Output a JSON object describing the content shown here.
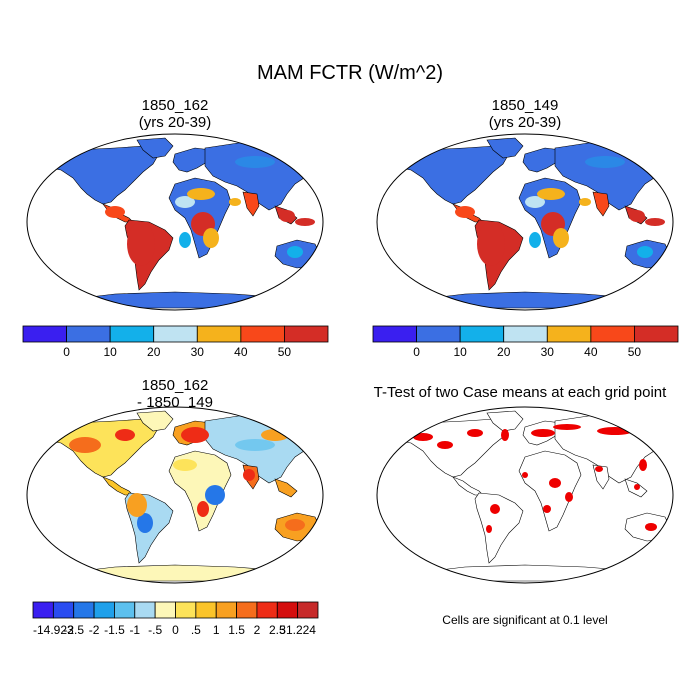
{
  "title": "MAM FCTR (W/m^2)",
  "panels": [
    {
      "id": "case1",
      "title_line1": "1850_162",
      "title_line2": "(yrs 20-39)"
    },
    {
      "id": "case2",
      "title_line1": "1850_149",
      "title_line2": "(yrs 20-39)"
    },
    {
      "id": "diff",
      "title_line1": "1850_162",
      "title_line2": "- 1850_149"
    },
    {
      "id": "ttest",
      "title_line1": "T-Test of two Case means at each grid point",
      "title_line2": ""
    }
  ],
  "colorbar_abs": {
    "colors": [
      "#3a1ff0",
      "#3b6fe3",
      "#13b0ea",
      "#bfe3f2",
      "#f5b21c",
      "#f8481a",
      "#d42d26"
    ],
    "labels": [
      "0",
      "10",
      "20",
      "30",
      "40",
      "50"
    ]
  },
  "colorbar_diff": {
    "colors": [
      "#3a1ff0",
      "#2a4cf0",
      "#2577e8",
      "#1fa0ea",
      "#5cc0ee",
      "#a9daf2",
      "#fdf7b8",
      "#fde35a",
      "#fbc42a",
      "#f8a021",
      "#f56d1c",
      "#ee2c16",
      "#d40d0d",
      "#c72a2a"
    ],
    "labels": [
      "-14.923",
      "-2.5",
      "-2",
      "-1.5",
      "-1",
      "-.5",
      "0",
      ".5",
      "1",
      "1.5",
      "2",
      "2.5",
      "31.224"
    ]
  },
  "significance_note": "Cells are significant at 0.1 level",
  "significance_color": "#ee0000"
}
